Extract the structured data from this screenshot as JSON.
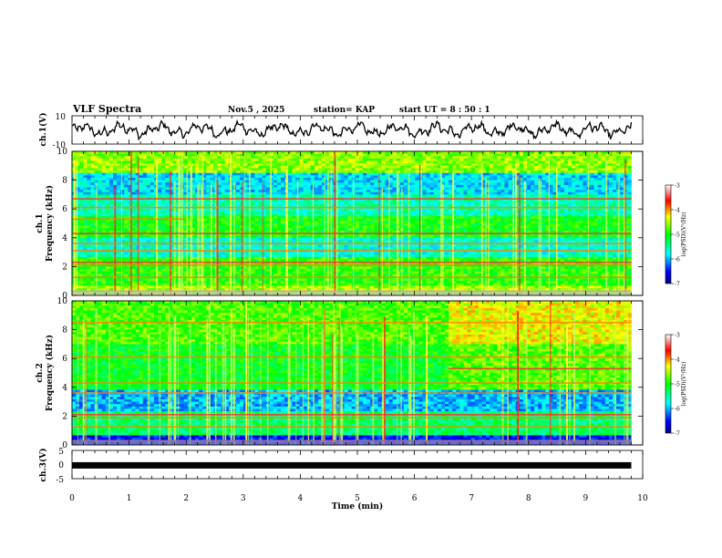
{
  "header": {
    "title": "VLF Spectra",
    "date": "Nov.5  , 2025",
    "station": "station= KAP",
    "start_ut": "start  UT  =   8  : 50 : 1"
  },
  "chart_data": [
    {
      "type": "line",
      "id": "ch1_waveform",
      "ylabel": "ch.1(V)",
      "ylim": [
        -10,
        10
      ],
      "yticks": [
        "10",
        "-10"
      ],
      "xlim": [
        0,
        10
      ],
      "x_end": 9.8
    },
    {
      "type": "heatmap",
      "id": "ch1_spectrogram",
      "ylabel_channel": "ch.1",
      "ylabel": "Frequency (kHz)",
      "ylim": [
        0,
        10
      ],
      "yticks": [
        "0",
        "2",
        "4",
        "6",
        "8",
        "10"
      ],
      "xlim": [
        0,
        10
      ],
      "x_end": 9.8,
      "colorbar": {
        "label": "log(PSD)(V²/Hz)",
        "range": [
          -7,
          -3
        ],
        "ticks": [
          "-3",
          "-4",
          "-5",
          "-6",
          "-7"
        ]
      },
      "line_features_khz": [
        0.3,
        1.25,
        2.1,
        2.3,
        3.1,
        3.6,
        4.3,
        5.3,
        6.1,
        6.7
      ]
    },
    {
      "type": "heatmap",
      "id": "ch2_spectrogram",
      "ylabel_channel": "ch.2",
      "ylabel": "Frequency (kHz)",
      "ylim": [
        0,
        10
      ],
      "yticks": [
        "0",
        "2",
        "4",
        "6",
        "8",
        "10"
      ],
      "xlim": [
        0,
        10
      ],
      "x_end": 9.8,
      "colorbar": {
        "label": "log(PSD)(V²/Hz)",
        "range": [
          -7,
          -3
        ],
        "ticks": [
          "-3",
          "-4",
          "-5",
          "-6",
          "-7"
        ]
      },
      "line_features_khz": [
        0.3,
        1.25,
        1.9,
        2.1,
        3.6,
        4.3,
        5.3,
        6.1,
        8.5
      ],
      "step_change_min": 6.6
    },
    {
      "type": "line",
      "id": "ch3_waveform",
      "ylabel": "ch.3(V)",
      "ylim": [
        -5,
        5
      ],
      "yticks": [
        "5",
        "0",
        "-5"
      ],
      "xlim": [
        0,
        10
      ],
      "x_end": 9.8,
      "level_v": -0.3,
      "xlabel": "Time  (min)",
      "xticks": [
        "0",
        "1",
        "2",
        "3",
        "4",
        "5",
        "6",
        "7",
        "8",
        "9",
        "10"
      ]
    }
  ]
}
